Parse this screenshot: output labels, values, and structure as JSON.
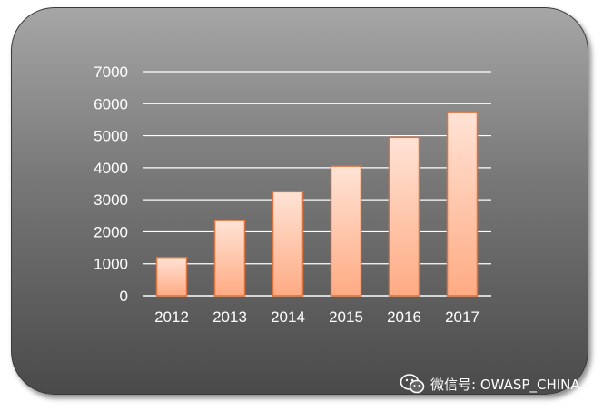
{
  "chart_data": {
    "type": "bar",
    "categories": [
      "2012",
      "2013",
      "2014",
      "2015",
      "2016",
      "2017"
    ],
    "values": [
      1200,
      2350,
      3250,
      4050,
      4950,
      5750
    ],
    "ylim": [
      0,
      7000
    ],
    "yticks": [
      0,
      1000,
      2000,
      3000,
      4000,
      5000,
      6000,
      7000
    ],
    "grid": true,
    "colors": {
      "bar_top": "#ffe3d6",
      "bar_bottom": "#ffab83",
      "bar_border": "#d9733f",
      "gridline": "#ffffff",
      "tick_text": "#ffffff"
    }
  },
  "watermark": {
    "icon": "wechat-icon",
    "text": "微信号: OWASP_CHINA"
  }
}
